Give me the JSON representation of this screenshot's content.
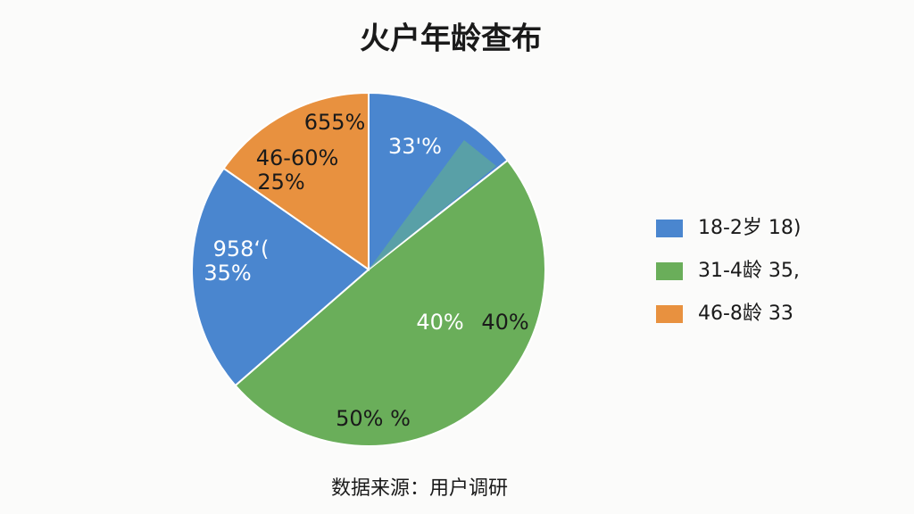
{
  "chart_data": {
    "type": "pie",
    "title": "火户年龄查布",
    "values": [
      14.4,
      49.2,
      21.1,
      15.3
    ],
    "colors": [
      "#4a86cf",
      "#6aae5a",
      "#4a86cf",
      "#e8913f"
    ],
    "slice_labels": [
      [
        "33'%"
      ],
      [
        "40%",
        "40%",
        "50% %"
      ],
      [
        "958‘(",
        "35%"
      ],
      [
        "655%",
        "46-60%",
        "25%"
      ]
    ],
    "legend": [
      {
        "label": "18-2岁 18)",
        "color": "#4a86cf"
      },
      {
        "label": "31-4龄 35,",
        "color": "#6aae5a"
      },
      {
        "label": "46-8龄 33",
        "color": "#e8913f"
      }
    ],
    "source": "数据来源：用户调研"
  }
}
